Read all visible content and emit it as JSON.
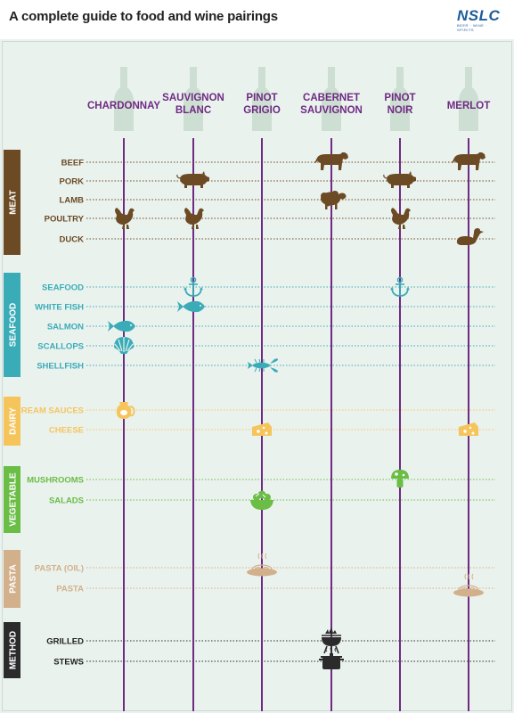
{
  "title": "A complete guide to food and wine pairings",
  "logo": {
    "name": "NSLC",
    "tagline": "BEER · WINE · SPIRITS"
  },
  "wines": [
    "CHARDONNAY",
    "SAUVIGNON|BLANC",
    "PINOT|GRIGIO",
    "CABERNET|SAUVIGNON",
    "PINOT|NOIR",
    "MERLOT"
  ],
  "colors": {
    "wine_line": "#6f2a83",
    "meat": "#6b4a24",
    "seafood": "#3aacb8",
    "dairy": "#f5c55c",
    "vegetable": "#6abd45",
    "pasta": "#d2b08c",
    "method": "#2b2b2b"
  },
  "categories": [
    {
      "name": "MEAT",
      "key": "meat",
      "rows": [
        "BEEF",
        "PORK",
        "LAMB",
        "POULTRY",
        "DUCK"
      ]
    },
    {
      "name": "SEAFOOD",
      "key": "seafood",
      "rows": [
        "SEAFOOD",
        "WHITE FISH",
        "SALMON",
        "SCALLOPS",
        "SHELLFISH"
      ]
    },
    {
      "name": "DAIRY",
      "key": "dairy",
      "rows": [
        "CREAM SAUCES",
        "CHEESE"
      ]
    },
    {
      "name": "VEGETABLE",
      "key": "vegetable",
      "rows": [
        "MUSHROOMS",
        "SALADS"
      ]
    },
    {
      "name": "PASTA",
      "key": "pasta",
      "rows": [
        "PASTA (OIL)",
        "PASTA"
      ]
    },
    {
      "name": "METHOD",
      "key": "method",
      "rows": [
        "GRILLED",
        "STEWS"
      ]
    }
  ],
  "pairings": [
    {
      "row": "BEEF",
      "wine": "CABERNET|SAUVIGNON",
      "icon": "cow-icon"
    },
    {
      "row": "BEEF",
      "wine": "MERLOT",
      "icon": "cow-icon"
    },
    {
      "row": "PORK",
      "wine": "SAUVIGNON|BLANC",
      "icon": "pig-icon"
    },
    {
      "row": "PORK",
      "wine": "PINOT|NOIR",
      "icon": "pig-icon"
    },
    {
      "row": "LAMB",
      "wine": "CABERNET|SAUVIGNON",
      "icon": "sheep-icon"
    },
    {
      "row": "POULTRY",
      "wine": "CHARDONNAY",
      "icon": "chicken-icon"
    },
    {
      "row": "POULTRY",
      "wine": "SAUVIGNON|BLANC",
      "icon": "chicken-icon"
    },
    {
      "row": "POULTRY",
      "wine": "PINOT|NOIR",
      "icon": "chicken-icon"
    },
    {
      "row": "DUCK",
      "wine": "MERLOT",
      "icon": "duck-icon"
    },
    {
      "row": "SEAFOOD",
      "wine": "SAUVIGNON|BLANC",
      "icon": "anchor-icon"
    },
    {
      "row": "SEAFOOD",
      "wine": "PINOT|NOIR",
      "icon": "anchor-icon"
    },
    {
      "row": "WHITE FISH",
      "wine": "SAUVIGNON|BLANC",
      "icon": "fish-icon"
    },
    {
      "row": "SALMON",
      "wine": "CHARDONNAY",
      "icon": "fish-icon"
    },
    {
      "row": "SCALLOPS",
      "wine": "CHARDONNAY",
      "icon": "scallop-icon"
    },
    {
      "row": "SHELLFISH",
      "wine": "PINOT|GRIGIO",
      "icon": "lobster-icon"
    },
    {
      "row": "CREAM SAUCES",
      "wine": "CHARDONNAY",
      "icon": "milk-jug-icon"
    },
    {
      "row": "CHEESE",
      "wine": "PINOT|GRIGIO",
      "icon": "cheese-icon"
    },
    {
      "row": "CHEESE",
      "wine": "MERLOT",
      "icon": "cheese-icon"
    },
    {
      "row": "MUSHROOMS",
      "wine": "PINOT|NOIR",
      "icon": "mushroom-icon"
    },
    {
      "row": "SALADS",
      "wine": "PINOT|GRIGIO",
      "icon": "salad-bowl-icon"
    },
    {
      "row": "PASTA (OIL)",
      "wine": "PINOT|GRIGIO",
      "icon": "pasta-plate-icon"
    },
    {
      "row": "PASTA",
      "wine": "MERLOT",
      "icon": "pasta-plate-icon"
    },
    {
      "row": "GRILLED",
      "wine": "CABERNET|SAUVIGNON",
      "icon": "grill-icon"
    },
    {
      "row": "STEWS",
      "wine": "CABERNET|SAUVIGNON",
      "icon": "pot-icon"
    }
  ]
}
